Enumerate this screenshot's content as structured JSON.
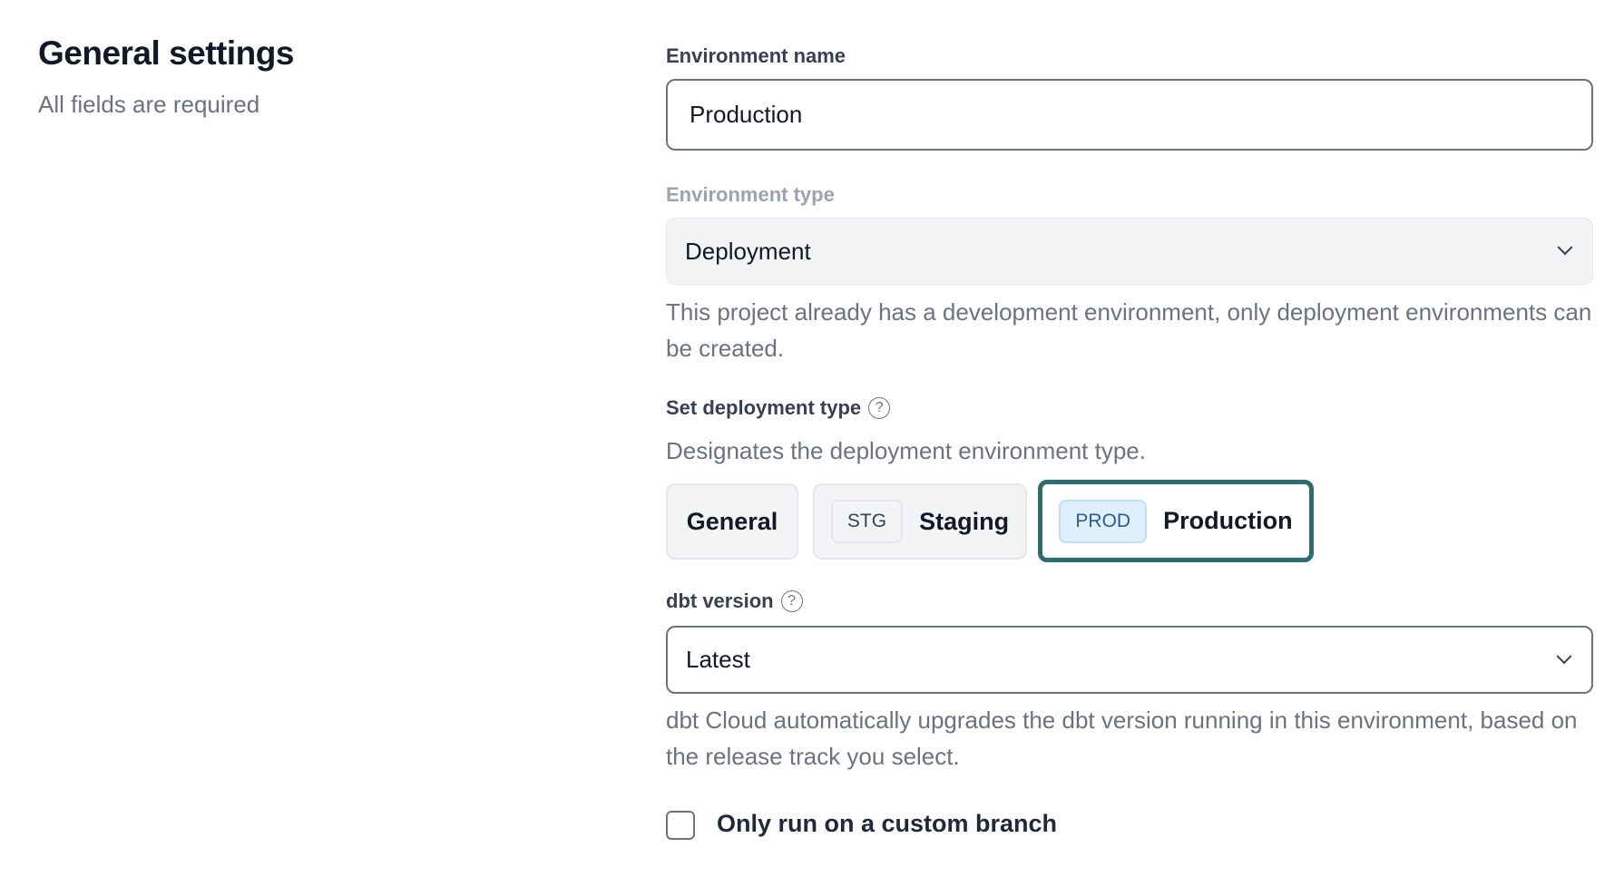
{
  "section": {
    "title": "General settings",
    "subtitle": "All fields are required"
  },
  "environment_name": {
    "label": "Environment name",
    "value": "Production"
  },
  "environment_type": {
    "label": "Environment type",
    "value": "Deployment",
    "help": "This project already has a development environment, only deployment environments can be created.",
    "disabled": true
  },
  "deployment_type": {
    "label": "Set deployment type",
    "help_icon": "question-circle-icon",
    "description": "Designates the deployment environment type.",
    "options": [
      {
        "label": "General",
        "badge": null,
        "selected": false
      },
      {
        "label": "Staging",
        "badge": "STG",
        "selected": false
      },
      {
        "label": "Production",
        "badge": "PROD",
        "selected": true
      }
    ],
    "selected_color": "#2f6b6f"
  },
  "dbt_version": {
    "label": "dbt version",
    "help_icon": "question-circle-icon",
    "value": "Latest",
    "help": "dbt Cloud automatically upgrades the dbt version running in this environment, based on the release track you select."
  },
  "custom_branch": {
    "label": "Only run on a custom branch",
    "checked": false
  }
}
